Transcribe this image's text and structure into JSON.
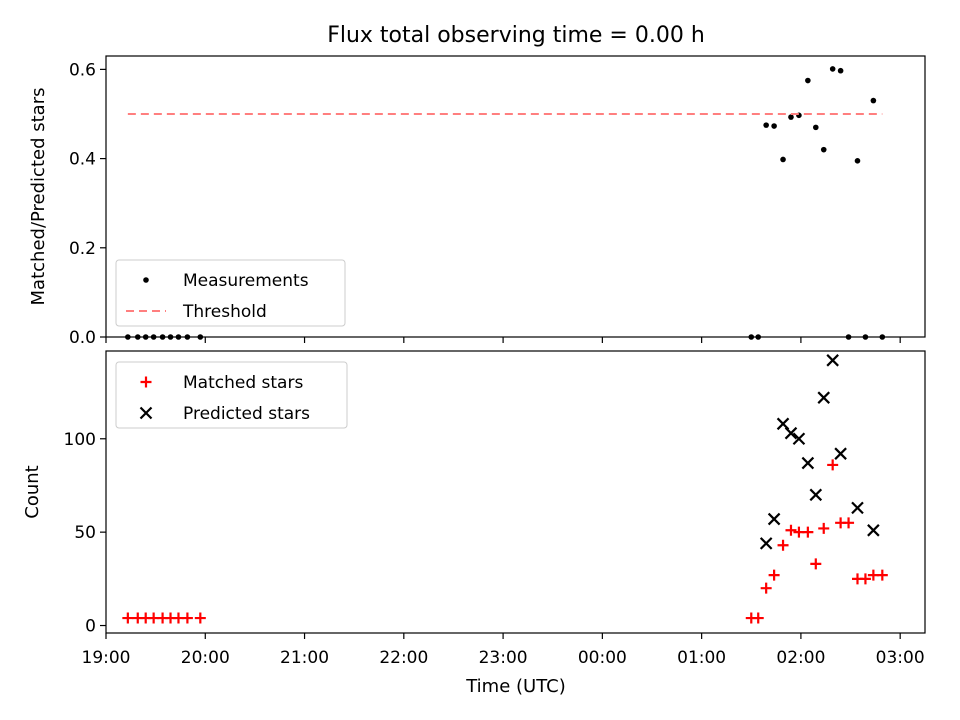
{
  "chart_data": [
    {
      "type": "scatter",
      "title": "Flux total observing time = 0.00 h",
      "xlabel": "",
      "ylabel": "Matched/Predicted stars",
      "xlim": [
        19.0,
        27.25
      ],
      "ylim": [
        0.0,
        0.63
      ],
      "yticks": [
        0.0,
        0.2,
        0.4,
        0.6
      ],
      "ytick_labels": [
        "0.0",
        "0.2",
        "0.4",
        "0.6"
      ],
      "legend_position": "lower-left",
      "series": [
        {
          "name": "Measurements",
          "kind": "scatter",
          "color": "#000000",
          "x": [
            19.22,
            19.32,
            19.4,
            19.48,
            19.57,
            19.65,
            19.73,
            19.82,
            19.95,
            25.5,
            25.57,
            25.65,
            25.73,
            25.82,
            25.9,
            25.98,
            26.07,
            26.15,
            26.23,
            26.32,
            26.4,
            26.48,
            26.57,
            26.65,
            26.73,
            26.82
          ],
          "y": [
            0.0,
            0.0,
            0.0,
            0.0,
            0.0,
            0.0,
            0.0,
            0.0,
            0.0,
            0.0,
            0.0,
            0.475,
            0.473,
            0.398,
            0.493,
            0.497,
            0.575,
            0.47,
            0.42,
            0.601,
            0.597,
            0.0,
            0.395,
            0.0,
            0.53,
            0.0
          ]
        },
        {
          "name": "Threshold",
          "kind": "line",
          "style": "dashed",
          "color": "#ff7f7f",
          "x": [
            19.22,
            26.82
          ],
          "y": [
            0.5,
            0.5
          ]
        }
      ]
    },
    {
      "type": "scatter",
      "title": "",
      "xlabel": "Time (UTC)",
      "ylabel": "Count",
      "xlim": [
        19.0,
        27.25
      ],
      "ylim": [
        -4,
        147
      ],
      "yticks": [
        0,
        50,
        100
      ],
      "ytick_labels": [
        "0",
        "50",
        "100"
      ],
      "xticks": [
        19,
        20,
        21,
        22,
        23,
        24,
        25,
        26,
        27
      ],
      "xtick_labels": [
        "19:00",
        "20:00",
        "21:00",
        "22:00",
        "23:00",
        "00:00",
        "01:00",
        "02:00",
        "03:00"
      ],
      "legend_position": "top-left",
      "series": [
        {
          "name": "Matched stars",
          "marker": "plus",
          "color": "#ff0000",
          "x": [
            19.22,
            19.32,
            19.4,
            19.48,
            19.57,
            19.65,
            19.73,
            19.82,
            19.95,
            25.5,
            25.57,
            25.65,
            25.73,
            25.82,
            25.9,
            25.98,
            26.07,
            26.15,
            26.23,
            26.32,
            26.4,
            26.48,
            26.57,
            26.65,
            26.73,
            26.82
          ],
          "y": [
            4,
            4,
            4,
            4,
            4,
            4,
            4,
            4,
            4,
            4,
            4,
            20,
            27,
            43,
            51,
            50,
            50,
            33,
            52,
            86,
            55,
            55,
            25,
            25,
            27,
            27
          ]
        },
        {
          "name": "Predicted stars",
          "marker": "x",
          "color": "#000000",
          "x": [
            25.65,
            25.73,
            25.82,
            25.9,
            25.98,
            26.07,
            26.15,
            26.23,
            26.32,
            26.4,
            26.57,
            26.73
          ],
          "y": [
            44,
            57,
            108,
            103,
            100,
            87,
            70,
            122,
            142,
            92,
            63,
            51
          ]
        }
      ]
    }
  ]
}
